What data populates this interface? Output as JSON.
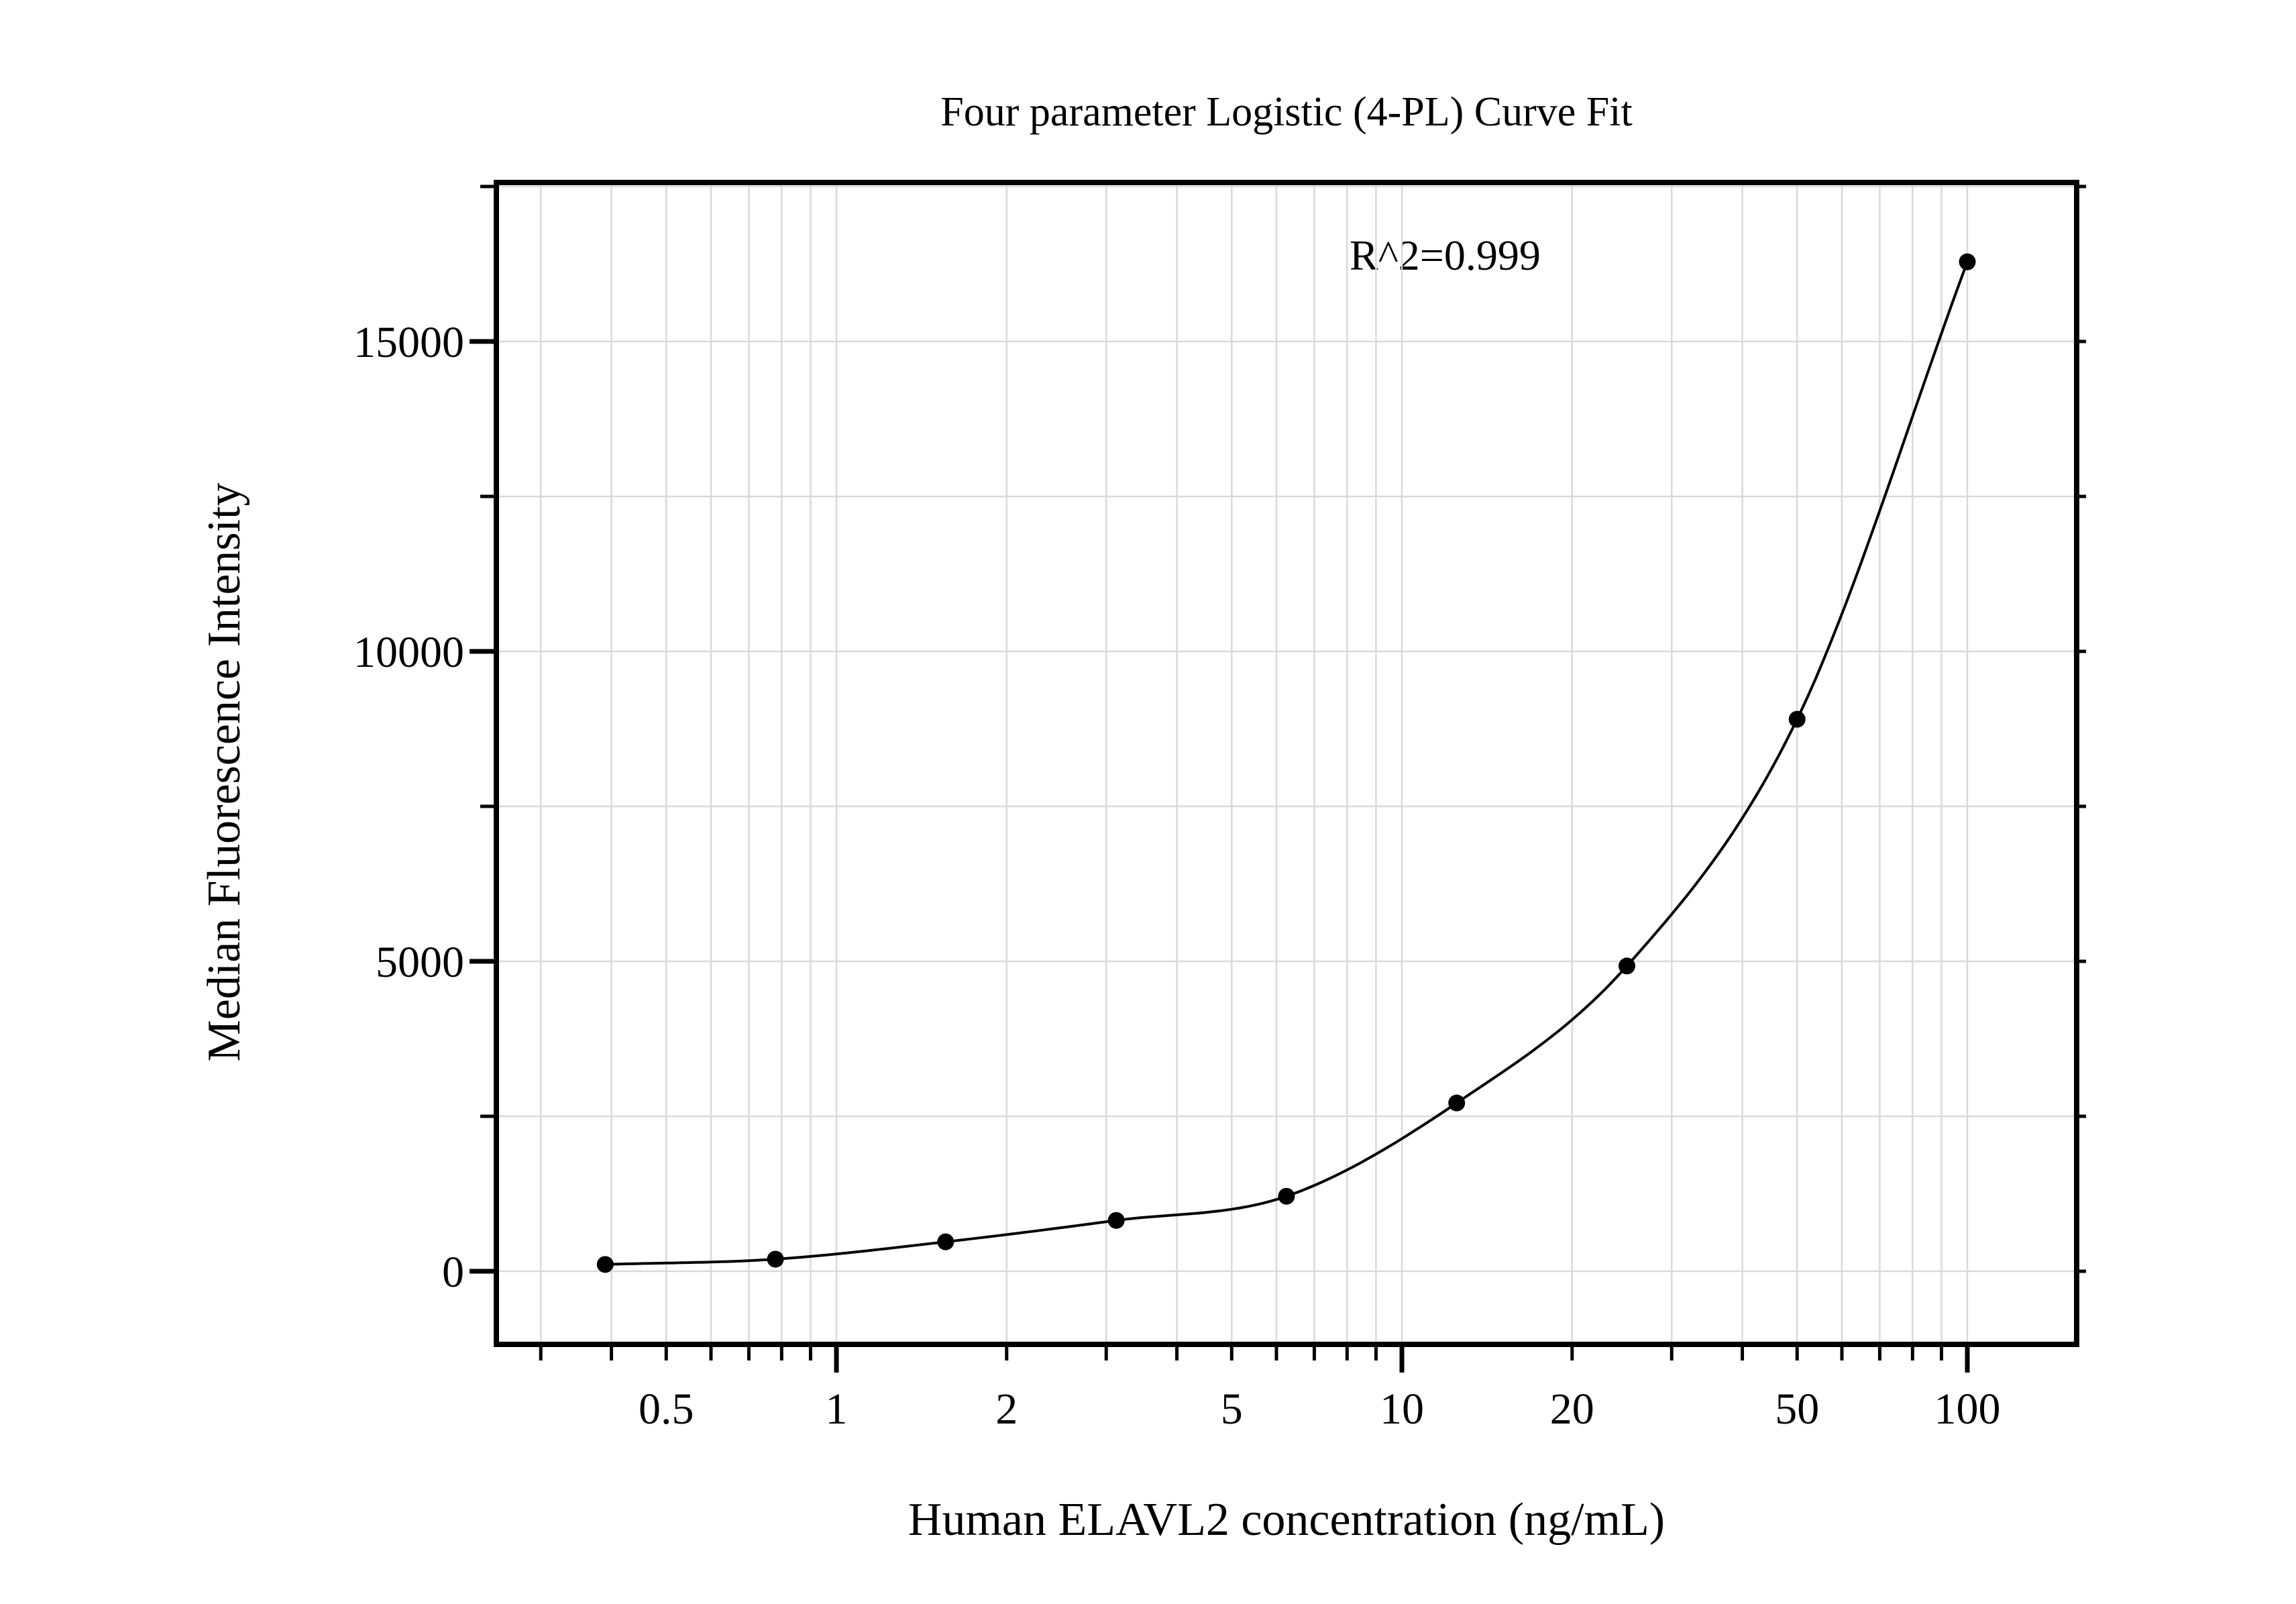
{
  "chart_data": {
    "type": "scatter",
    "title": "Four parameter Logistic (4-PL) Curve Fit",
    "annotation": "R^2=0.999",
    "xlabel": "Human ELAVL2 concentration (ng/mL)",
    "ylabel": "Median Fluorescence Intensity",
    "x_scale": "log10",
    "y_scale": "linear",
    "xlim": [
      0.25,
      156
    ],
    "ylim": [
      -1180,
      17565
    ],
    "grid": true,
    "legend": "none",
    "fit": "4-parameter logistic curve through all points, drawn from first to last point",
    "x_ticks": {
      "labeled": [
        0.5,
        1,
        2,
        5,
        10,
        20,
        50,
        100
      ],
      "major": [
        1,
        10,
        100
      ],
      "all": [
        0.3,
        0.4,
        0.5,
        0.6,
        0.7,
        0.8,
        0.9,
        1,
        2,
        3,
        4,
        5,
        6,
        7,
        8,
        9,
        10,
        20,
        30,
        40,
        50,
        60,
        70,
        80,
        90,
        100
      ]
    },
    "y_ticks": {
      "major": [
        0,
        5000,
        10000,
        15000
      ],
      "major_labels": [
        "0",
        "5000",
        "10000",
        "15000"
      ],
      "minor": [
        2500,
        7500,
        12500,
        17500
      ]
    },
    "series": [
      {
        "name": "standard-curve",
        "marker": "filled-circle",
        "color": "#000000",
        "points": [
          [
            0.39,
            110
          ],
          [
            0.78,
            195
          ],
          [
            1.56,
            475
          ],
          [
            3.125,
            820
          ],
          [
            6.25,
            1210
          ],
          [
            12.5,
            2715
          ],
          [
            25,
            4925
          ],
          [
            50,
            8905
          ],
          [
            100,
            16285
          ]
        ]
      }
    ],
    "colors": {
      "ink": "#000000",
      "grid": "#d9d9d9",
      "background": "#ffffff"
    }
  }
}
